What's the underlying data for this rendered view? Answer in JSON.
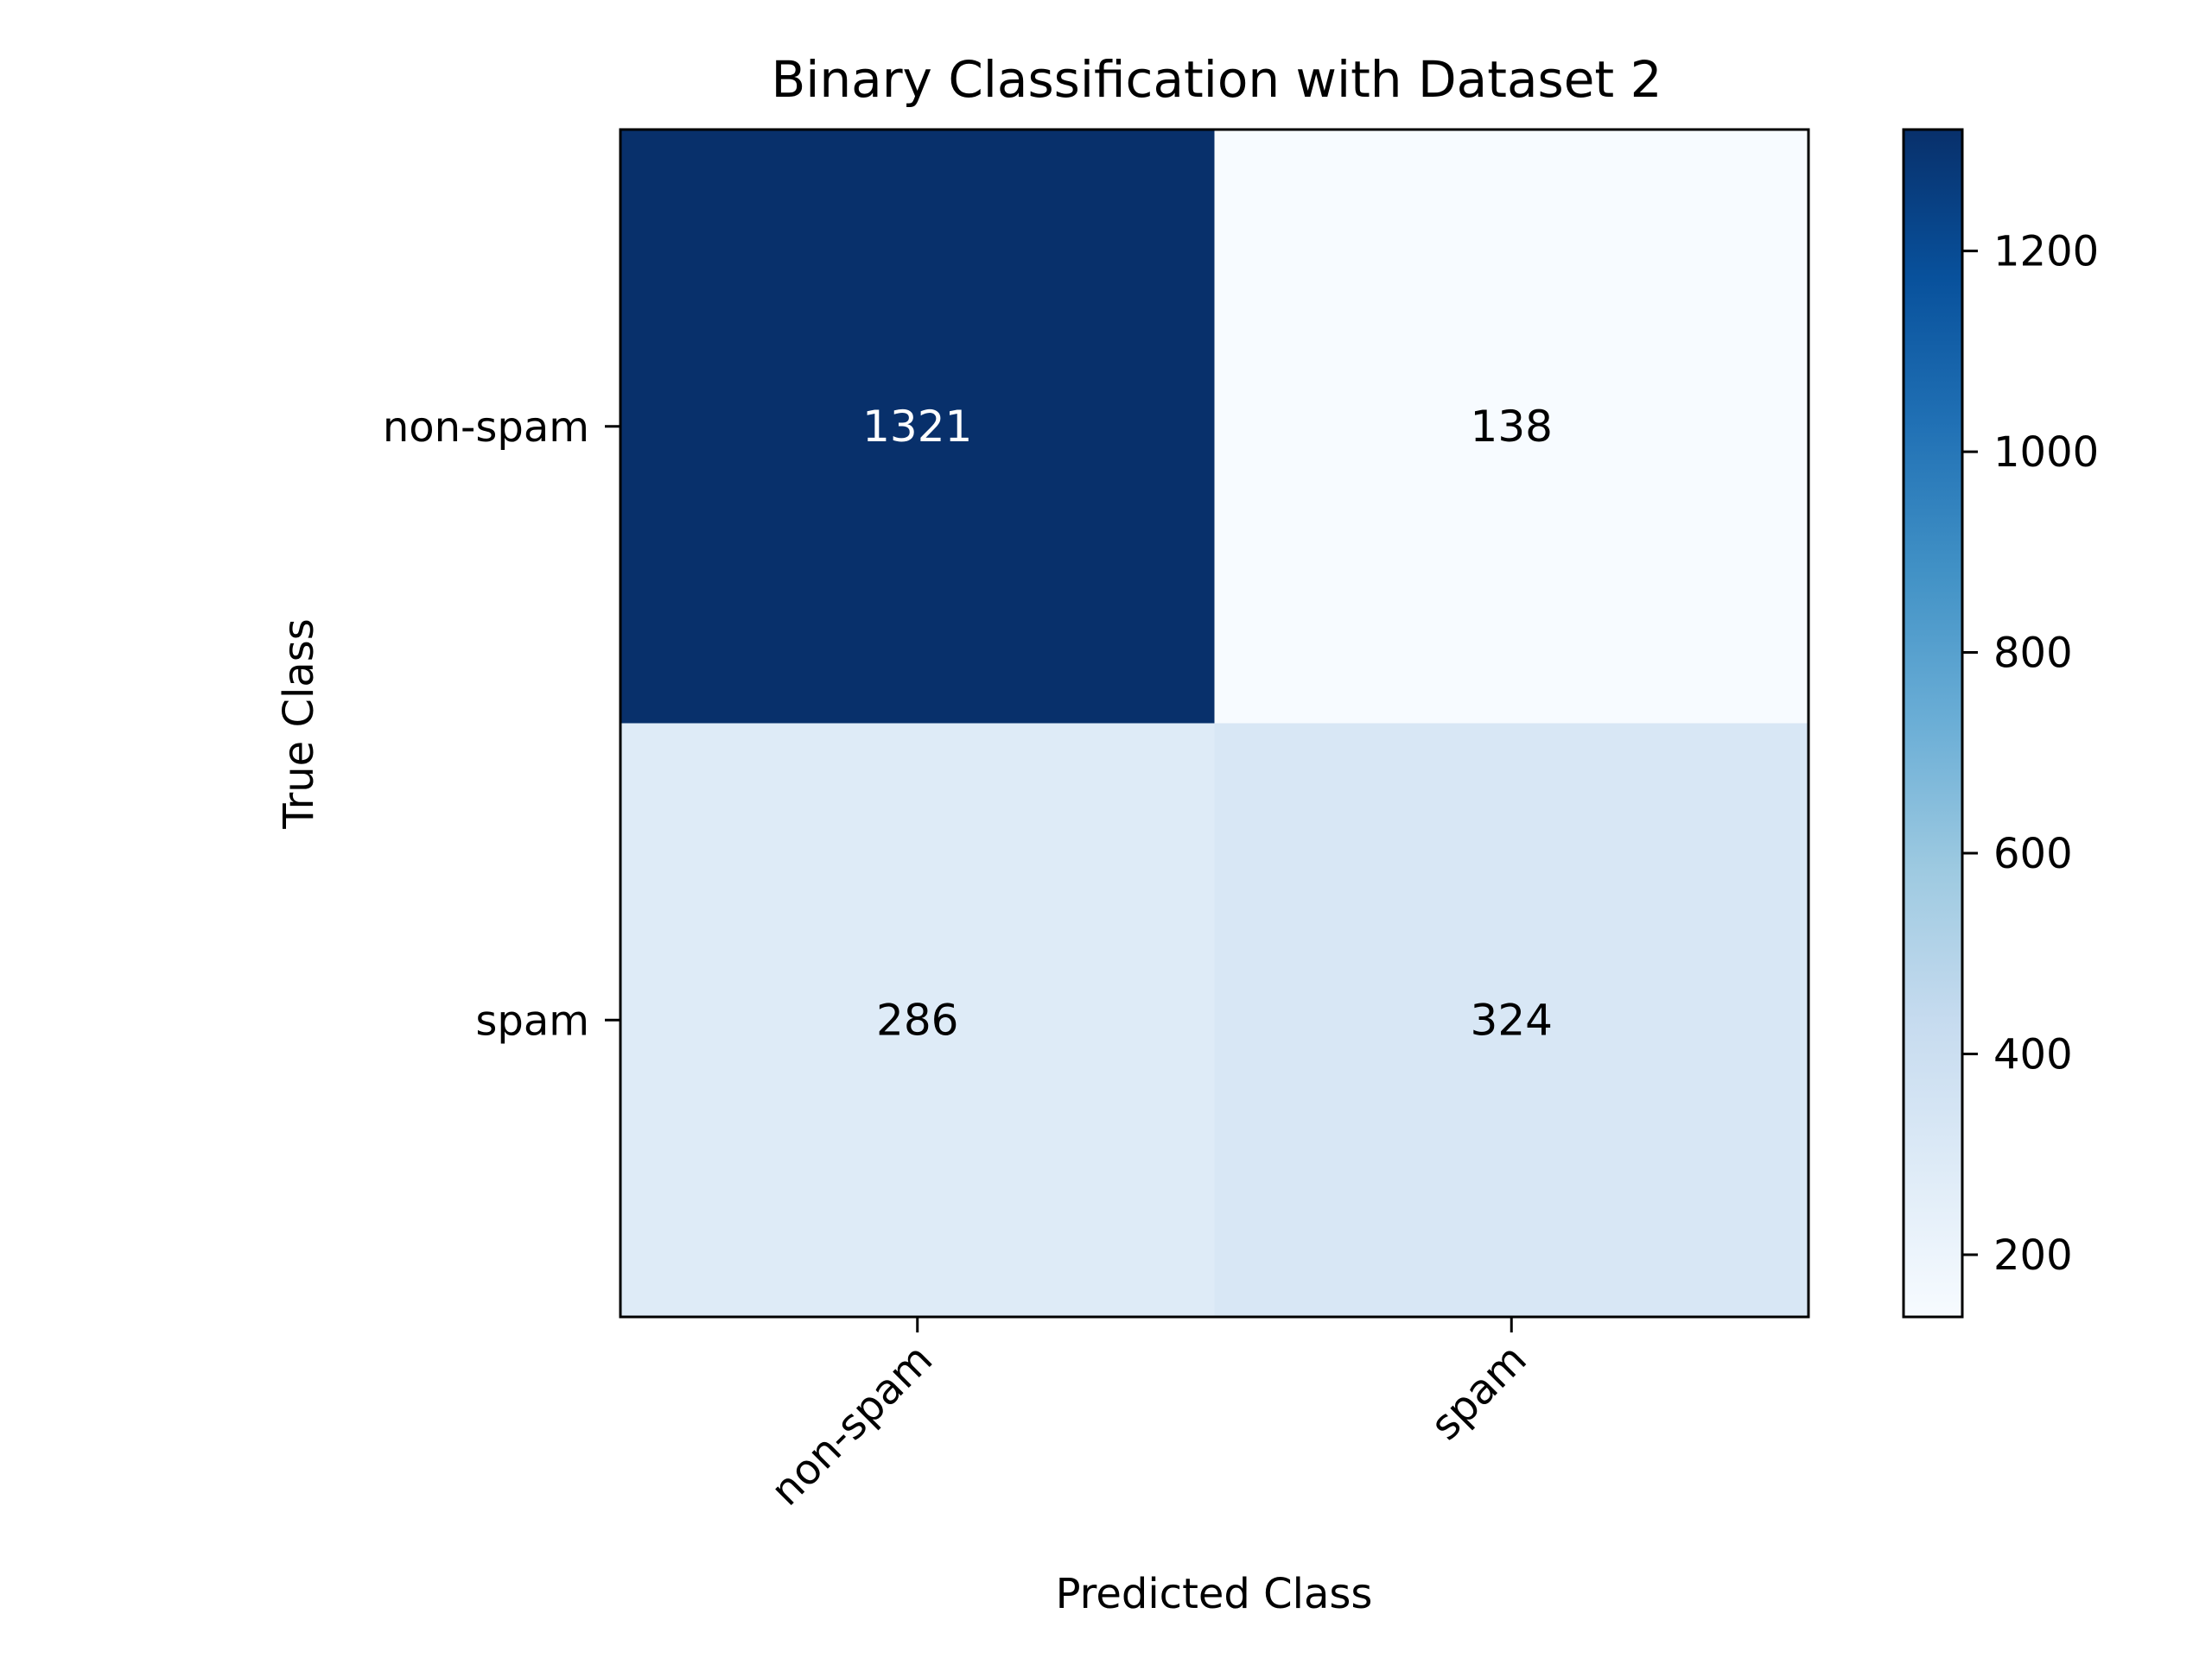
{
  "chart_data": {
    "type": "heatmap",
    "title": "Binary Classification with Dataset 2",
    "xlabel": "Predicted Class",
    "ylabel": "True Class",
    "x_categories": [
      "non-spam",
      "spam"
    ],
    "y_categories": [
      "non-spam",
      "spam"
    ],
    "values": [
      [
        1321,
        138
      ],
      [
        286,
        324
      ]
    ],
    "colormap": "Blues",
    "colorbar": {
      "range": [
        138,
        1321
      ],
      "ticks": [
        200,
        400,
        600,
        800,
        1000,
        1200
      ]
    },
    "grid": false,
    "legend": "none"
  }
}
